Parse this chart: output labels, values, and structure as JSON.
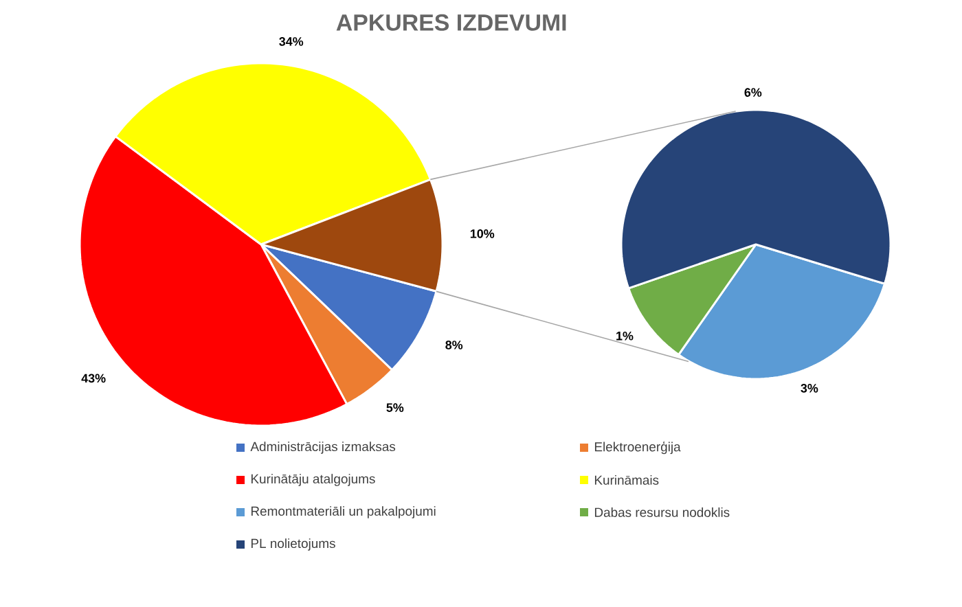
{
  "chart_data": [
    {
      "type": "pie",
      "title": "APKURES IZDEVUMI",
      "categories": [
        "Administrācijas izmaksas",
        "Elektroenerģija",
        "Kurinātāju atalgojums",
        "Kurināmais",
        null
      ],
      "values": [
        8,
        5,
        43,
        34,
        10
      ],
      "colors": [
        "#4472c4",
        "#ed7d31",
        "#ff0000",
        "#ffff00",
        "#9e480e"
      ],
      "value_labels": [
        "8%",
        "5%",
        "43%",
        "34%",
        "10%"
      ],
      "legend": "bottom"
    },
    {
      "type": "pie",
      "categories": [
        "Remontmateriāli un pakalpojumi",
        "Dabas resursu nodoklis",
        "PL nolietojums"
      ],
      "values": [
        3,
        1,
        6
      ],
      "colors": [
        "#5b9bd5",
        "#70ad47",
        "#264478"
      ],
      "value_labels": [
        "3%",
        "1%",
        "6%"
      ],
      "legend": "bottom"
    }
  ]
}
